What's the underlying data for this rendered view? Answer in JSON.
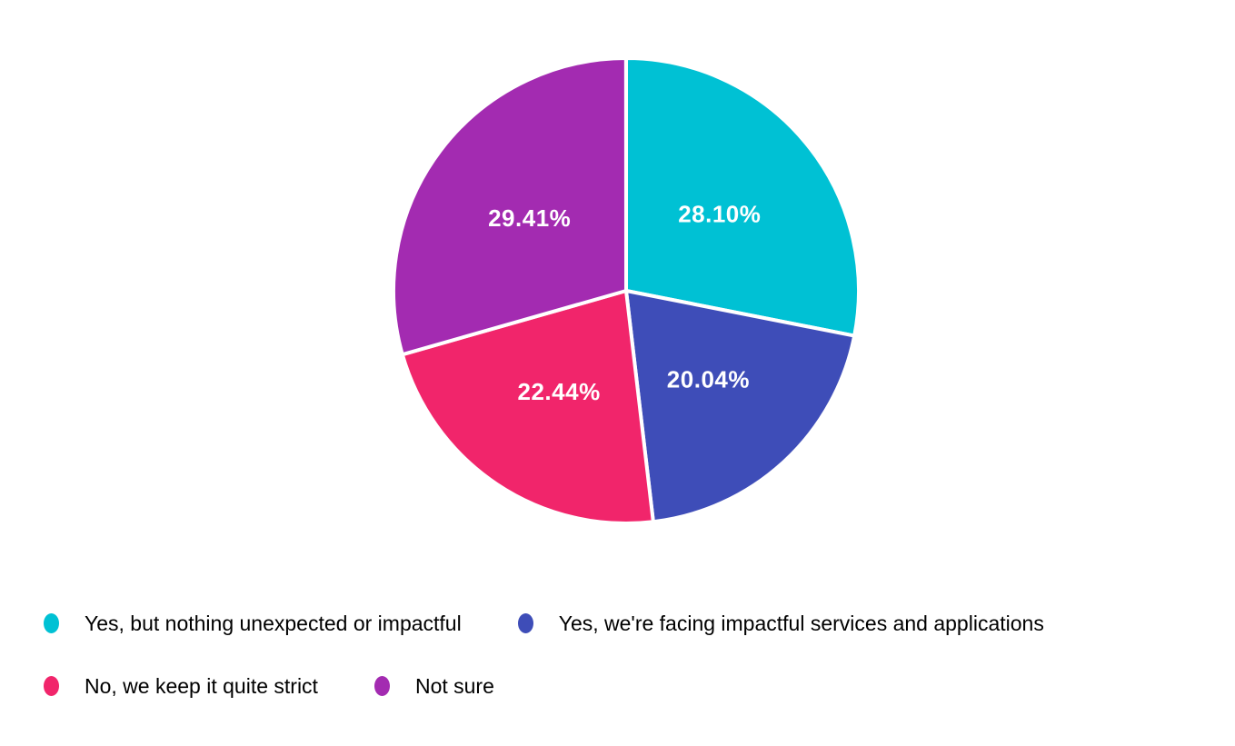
{
  "chart_data": {
    "type": "pie",
    "title": "",
    "start_angle_deg": 0,
    "direction": "clockwise",
    "slice_label_color": "#ffffff",
    "slice_border_color": "#ffffff",
    "legend_position": "bottom-left",
    "legend_text_color": "#000000",
    "series": [
      {
        "label": "Yes, but nothing unexpected or impactful",
        "value": 28.1,
        "display": "28.10%",
        "color": "#00C1D4"
      },
      {
        "label": "Yes, we're facing impactful services and applications",
        "value": 20.04,
        "display": "20.04%",
        "color": "#3E4DB8"
      },
      {
        "label": "No, we keep it quite strict",
        "value": 22.44,
        "display": "22.44%",
        "color": "#F1256B"
      },
      {
        "label": "Not sure",
        "value": 29.41,
        "display": "29.41%",
        "color": "#A32BB1"
      }
    ],
    "legend_rows": [
      [
        0,
        1
      ],
      [
        2,
        3
      ]
    ]
  }
}
